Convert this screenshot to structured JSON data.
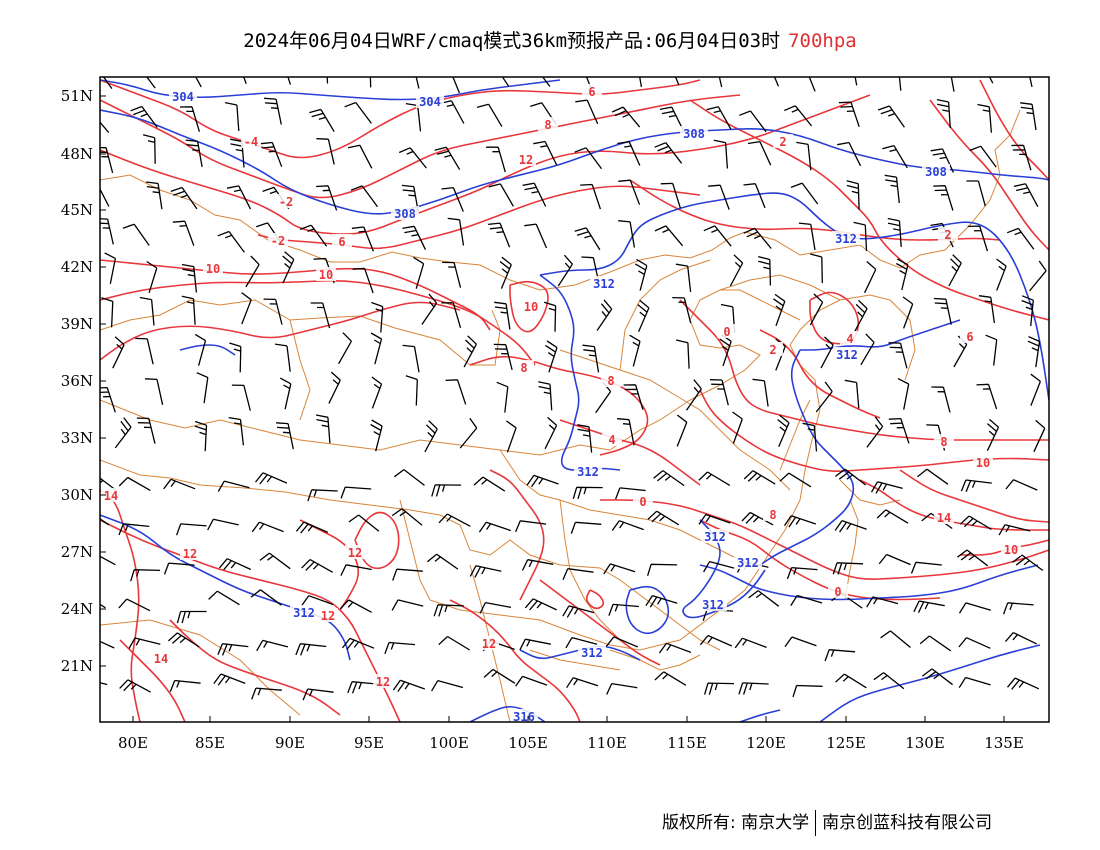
{
  "title": {
    "main": "2024年06月04日WRF/cmaq模式36km预报产品:06月04日03时",
    "level": "700hpa"
  },
  "colors": {
    "temperature": "#e8363a",
    "height": "#2a3fd6",
    "boundary": "#d9853a",
    "wind": "#000000",
    "level_text": "#e03030"
  },
  "map": {
    "lon_range": [
      78,
      138
    ],
    "lat_range": [
      18,
      52
    ],
    "lon_ticks": [
      "80E",
      "85E",
      "90E",
      "95E",
      "100E",
      "105E",
      "110E",
      "115E",
      "120E",
      "125E",
      "130E",
      "135E"
    ],
    "lat_ticks": [
      "51N",
      "48N",
      "45N",
      "42N",
      "39N",
      "36N",
      "33N",
      "30N",
      "27N",
      "24N",
      "21N"
    ],
    "height_labels": [
      "304",
      "304",
      "308",
      "308",
      "308",
      "312",
      "312",
      "312",
      "312",
      "312",
      "312",
      "312",
      "312",
      "312",
      "316"
    ],
    "temp_labels": [
      "-4",
      "-2",
      "-2",
      "6",
      "6",
      "8",
      "10",
      "10",
      "12",
      "10",
      "8",
      "8",
      "4",
      "0",
      "2",
      "2",
      "0",
      "2",
      "4",
      "6",
      "8",
      "10",
      "14",
      "14",
      "12",
      "12",
      "12",
      "12",
      "12",
      "14",
      "0",
      "10",
      "8"
    ]
  },
  "footer": {
    "copyright": "版权所有: 南京大学",
    "company": "南京创蓝科技有限公司"
  }
}
